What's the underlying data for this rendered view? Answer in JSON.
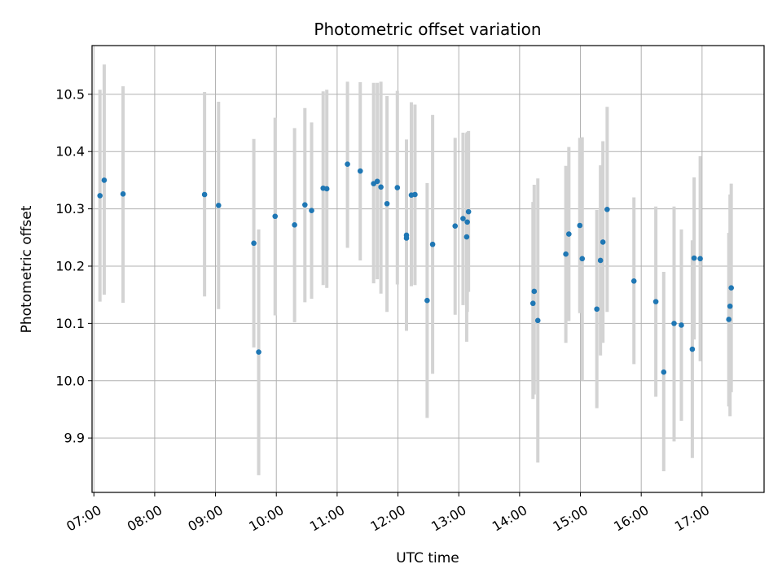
{
  "chart_data": {
    "type": "scatter",
    "title": "Photometric offset variation",
    "xlabel": "UTC time",
    "ylabel": "Photometric offset",
    "x_unit": "hours UTC",
    "xlim": [
      6.97,
      18.02
    ],
    "ylim": [
      9.805,
      10.585
    ],
    "grid": true,
    "legend": "none",
    "colors": {
      "point": "#1f77b4",
      "errorbar": "#d3d3d3"
    },
    "x_ticks": [
      {
        "value": 7,
        "label": "07:00"
      },
      {
        "value": 8,
        "label": "08:00"
      },
      {
        "value": 9,
        "label": "09:00"
      },
      {
        "value": 10,
        "label": "10:00"
      },
      {
        "value": 11,
        "label": "11:00"
      },
      {
        "value": 12,
        "label": "12:00"
      },
      {
        "value": 13,
        "label": "13:00"
      },
      {
        "value": 14,
        "label": "14:00"
      },
      {
        "value": 15,
        "label": "15:00"
      },
      {
        "value": 16,
        "label": "16:00"
      },
      {
        "value": 17,
        "label": "17:00"
      }
    ],
    "y_ticks": [
      {
        "value": 9.9,
        "label": "9.9"
      },
      {
        "value": 10.0,
        "label": "10.0"
      },
      {
        "value": 10.1,
        "label": "10.1"
      },
      {
        "value": 10.2,
        "label": "10.2"
      },
      {
        "value": 10.3,
        "label": "10.3"
      },
      {
        "value": 10.4,
        "label": "10.4"
      },
      {
        "value": 10.5,
        "label": "10.5"
      }
    ],
    "points": [
      {
        "x": 7.1,
        "y": 10.323,
        "err_low": 10.138,
        "err_high": 10.508
      },
      {
        "x": 7.17,
        "y": 10.35,
        "err_low": 10.15,
        "err_high": 10.552
      },
      {
        "x": 7.48,
        "y": 10.326,
        "err_low": 10.136,
        "err_high": 10.514
      },
      {
        "x": 8.82,
        "y": 10.325,
        "err_low": 10.147,
        "err_high": 10.504
      },
      {
        "x": 9.05,
        "y": 10.306,
        "err_low": 10.125,
        "err_high": 10.487
      },
      {
        "x": 9.63,
        "y": 10.24,
        "err_low": 10.058,
        "err_high": 10.422
      },
      {
        "x": 9.71,
        "y": 10.05,
        "err_low": 9.835,
        "err_high": 10.264
      },
      {
        "x": 9.98,
        "y": 10.287,
        "err_low": 10.114,
        "err_high": 10.459
      },
      {
        "x": 10.3,
        "y": 10.272,
        "err_low": 10.102,
        "err_high": 10.441
      },
      {
        "x": 10.47,
        "y": 10.307,
        "err_low": 10.137,
        "err_high": 10.476
      },
      {
        "x": 10.58,
        "y": 10.297,
        "err_low": 10.143,
        "err_high": 10.451
      },
      {
        "x": 10.77,
        "y": 10.336,
        "err_low": 10.167,
        "err_high": 10.505
      },
      {
        "x": 10.83,
        "y": 10.335,
        "err_low": 10.162,
        "err_high": 10.508
      },
      {
        "x": 11.17,
        "y": 10.378,
        "err_low": 10.232,
        "err_high": 10.522
      },
      {
        "x": 11.38,
        "y": 10.366,
        "err_low": 10.21,
        "err_high": 10.521
      },
      {
        "x": 11.6,
        "y": 10.344,
        "err_low": 10.17,
        "err_high": 10.52
      },
      {
        "x": 11.66,
        "y": 10.348,
        "err_low": 10.177,
        "err_high": 10.52
      },
      {
        "x": 11.72,
        "y": 10.338,
        "err_low": 10.152,
        "err_high": 10.522
      },
      {
        "x": 11.82,
        "y": 10.309,
        "err_low": 10.12,
        "err_high": 10.497
      },
      {
        "x": 11.99,
        "y": 10.337,
        "err_low": 10.168,
        "err_high": 10.506
      },
      {
        "x": 12.14,
        "y": 10.254,
        "err_low": 10.087,
        "err_high": 10.421
      },
      {
        "x": 12.14,
        "y": 10.249,
        "err_low": 10.1,
        "err_high": 10.398
      },
      {
        "x": 12.22,
        "y": 10.324,
        "err_low": 10.165,
        "err_high": 10.486
      },
      {
        "x": 12.28,
        "y": 10.325,
        "err_low": 10.167,
        "err_high": 10.482
      },
      {
        "x": 12.48,
        "y": 10.14,
        "err_low": 9.935,
        "err_high": 10.345
      },
      {
        "x": 12.57,
        "y": 10.238,
        "err_low": 10.012,
        "err_high": 10.464
      },
      {
        "x": 12.94,
        "y": 10.27,
        "err_low": 10.115,
        "err_high": 10.424
      },
      {
        "x": 13.07,
        "y": 10.283,
        "err_low": 10.132,
        "err_high": 10.433
      },
      {
        "x": 13.13,
        "y": 10.251,
        "err_low": 10.068,
        "err_high": 10.432
      },
      {
        "x": 13.14,
        "y": 10.277,
        "err_low": 10.12,
        "err_high": 10.434
      },
      {
        "x": 13.16,
        "y": 10.295,
        "err_low": 10.155,
        "err_high": 10.436
      },
      {
        "x": 14.22,
        "y": 10.135,
        "err_low": 9.968,
        "err_high": 10.312
      },
      {
        "x": 14.24,
        "y": 10.156,
        "err_low": 9.976,
        "err_high": 10.342
      },
      {
        "x": 14.3,
        "y": 10.105,
        "err_low": 9.857,
        "err_high": 10.353
      },
      {
        "x": 14.76,
        "y": 10.221,
        "err_low": 10.066,
        "err_high": 10.375
      },
      {
        "x": 14.81,
        "y": 10.256,
        "err_low": 10.104,
        "err_high": 10.408
      },
      {
        "x": 14.99,
        "y": 10.271,
        "err_low": 10.118,
        "err_high": 10.424
      },
      {
        "x": 15.03,
        "y": 10.213,
        "err_low": 10.0,
        "err_high": 10.425
      },
      {
        "x": 15.27,
        "y": 10.125,
        "err_low": 9.952,
        "err_high": 10.298
      },
      {
        "x": 15.33,
        "y": 10.21,
        "err_low": 10.044,
        "err_high": 10.376
      },
      {
        "x": 15.37,
        "y": 10.242,
        "err_low": 10.066,
        "err_high": 10.418
      },
      {
        "x": 15.44,
        "y": 10.299,
        "err_low": 10.12,
        "err_high": 10.478
      },
      {
        "x": 15.88,
        "y": 10.174,
        "err_low": 10.029,
        "err_high": 10.32
      },
      {
        "x": 16.24,
        "y": 10.138,
        "err_low": 9.972,
        "err_high": 10.304
      },
      {
        "x": 16.37,
        "y": 10.015,
        "err_low": 9.842,
        "err_high": 10.19
      },
      {
        "x": 16.54,
        "y": 10.1,
        "err_low": 9.894,
        "err_high": 10.304
      },
      {
        "x": 16.66,
        "y": 10.097,
        "err_low": 9.93,
        "err_high": 10.264
      },
      {
        "x": 16.84,
        "y": 10.055,
        "err_low": 9.865,
        "err_high": 10.245
      },
      {
        "x": 16.87,
        "y": 10.214,
        "err_low": 10.072,
        "err_high": 10.355
      },
      {
        "x": 16.97,
        "y": 10.213,
        "err_low": 10.034,
        "err_high": 10.392
      },
      {
        "x": 17.44,
        "y": 10.107,
        "err_low": 9.955,
        "err_high": 10.258
      },
      {
        "x": 17.46,
        "y": 10.13,
        "err_low": 9.938,
        "err_high": 10.325
      },
      {
        "x": 17.48,
        "y": 10.162,
        "err_low": 9.98,
        "err_high": 10.344
      }
    ]
  }
}
